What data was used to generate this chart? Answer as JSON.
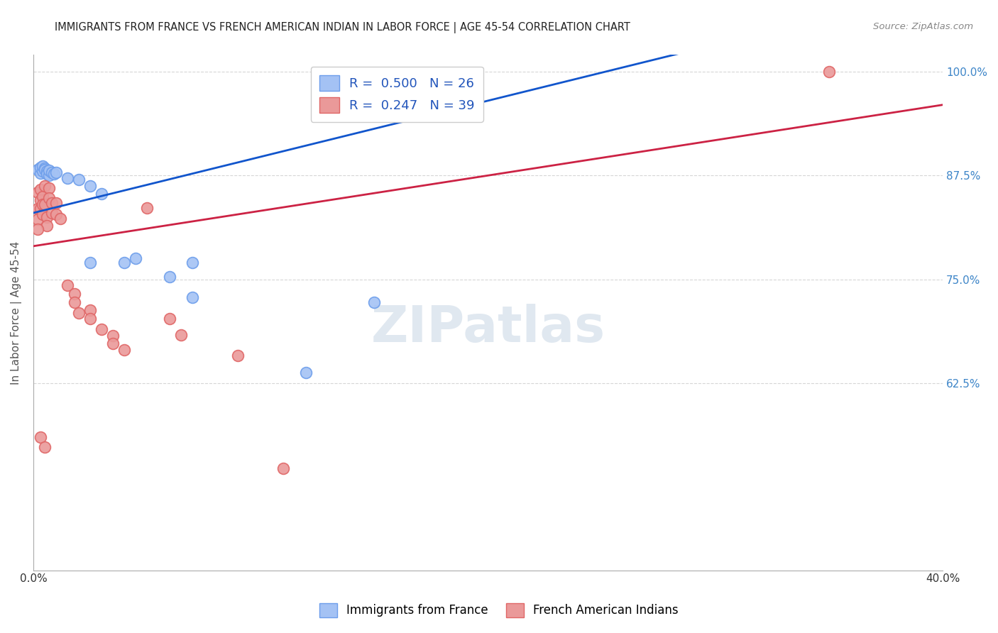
{
  "title": "IMMIGRANTS FROM FRANCE VS FRENCH AMERICAN INDIAN IN LABOR FORCE | AGE 45-54 CORRELATION CHART",
  "source": "Source: ZipAtlas.com",
  "ylabel": "In Labor Force | Age 45-54",
  "legend_blue_label": "Immigrants from France",
  "legend_pink_label": "French American Indians",
  "R_blue": 0.5,
  "N_blue": 26,
  "R_pink": 0.247,
  "N_pink": 39,
  "xlim": [
    0.0,
    0.4
  ],
  "ylim": [
    0.4,
    1.02
  ],
  "ytick_positions": [
    0.625,
    0.75,
    0.875,
    1.0
  ],
  "ytick_labels": [
    "62.5%",
    "75.0%",
    "87.5%",
    "100.0%"
  ],
  "xtick_positions": [
    0.0,
    0.05,
    0.1,
    0.15,
    0.2,
    0.25,
    0.3,
    0.35,
    0.4
  ],
  "xtick_labels": [
    "0.0%",
    "",
    "",
    "",
    "",
    "",
    "",
    "",
    "40.0%"
  ],
  "blue_line_x": [
    0.0,
    0.4
  ],
  "blue_line_y": [
    0.83,
    1.1
  ],
  "pink_line_x": [
    0.0,
    0.4
  ],
  "pink_line_y": [
    0.79,
    0.96
  ],
  "blue_points": [
    [
      0.002,
      0.882
    ],
    [
      0.003,
      0.878
    ],
    [
      0.003,
      0.885
    ],
    [
      0.004,
      0.88
    ],
    [
      0.004,
      0.886
    ],
    [
      0.005,
      0.884
    ],
    [
      0.005,
      0.882
    ],
    [
      0.006,
      0.88
    ],
    [
      0.006,
      0.877
    ],
    [
      0.007,
      0.875
    ],
    [
      0.007,
      0.881
    ],
    [
      0.008,
      0.879
    ],
    [
      0.009,
      0.877
    ],
    [
      0.01,
      0.879
    ],
    [
      0.015,
      0.872
    ],
    [
      0.02,
      0.87
    ],
    [
      0.025,
      0.862
    ],
    [
      0.03,
      0.853
    ],
    [
      0.04,
      0.77
    ],
    [
      0.045,
      0.775
    ],
    [
      0.06,
      0.753
    ],
    [
      0.07,
      0.728
    ],
    [
      0.12,
      0.638
    ],
    [
      0.15,
      0.722
    ],
    [
      0.07,
      0.77
    ],
    [
      0.025,
      0.77
    ]
  ],
  "pink_points": [
    [
      0.002,
      0.855
    ],
    [
      0.002,
      0.835
    ],
    [
      0.002,
      0.822
    ],
    [
      0.003,
      0.858
    ],
    [
      0.003,
      0.845
    ],
    [
      0.003,
      0.835
    ],
    [
      0.004,
      0.85
    ],
    [
      0.004,
      0.84
    ],
    [
      0.004,
      0.828
    ],
    [
      0.005,
      0.862
    ],
    [
      0.005,
      0.84
    ],
    [
      0.006,
      0.825
    ],
    [
      0.006,
      0.815
    ],
    [
      0.007,
      0.86
    ],
    [
      0.007,
      0.848
    ],
    [
      0.008,
      0.842
    ],
    [
      0.008,
      0.83
    ],
    [
      0.01,
      0.842
    ],
    [
      0.01,
      0.828
    ],
    [
      0.012,
      0.823
    ],
    [
      0.015,
      0.743
    ],
    [
      0.018,
      0.733
    ],
    [
      0.018,
      0.722
    ],
    [
      0.02,
      0.71
    ],
    [
      0.025,
      0.713
    ],
    [
      0.025,
      0.703
    ],
    [
      0.03,
      0.69
    ],
    [
      0.035,
      0.682
    ],
    [
      0.035,
      0.673
    ],
    [
      0.04,
      0.665
    ],
    [
      0.05,
      0.836
    ],
    [
      0.06,
      0.703
    ],
    [
      0.065,
      0.683
    ],
    [
      0.09,
      0.658
    ],
    [
      0.11,
      0.523
    ],
    [
      0.35,
      1.0
    ],
    [
      0.003,
      0.56
    ],
    [
      0.005,
      0.548
    ],
    [
      0.002,
      0.81
    ]
  ],
  "blue_color": "#a4c2f4",
  "pink_color": "#ea9999",
  "blue_edge_color": "#6d9eeb",
  "pink_edge_color": "#e06666",
  "blue_line_color": "#1155cc",
  "pink_line_color": "#cc2244",
  "watermark_text": "ZIPatlas",
  "background_color": "#ffffff",
  "grid_color": "#cccccc"
}
